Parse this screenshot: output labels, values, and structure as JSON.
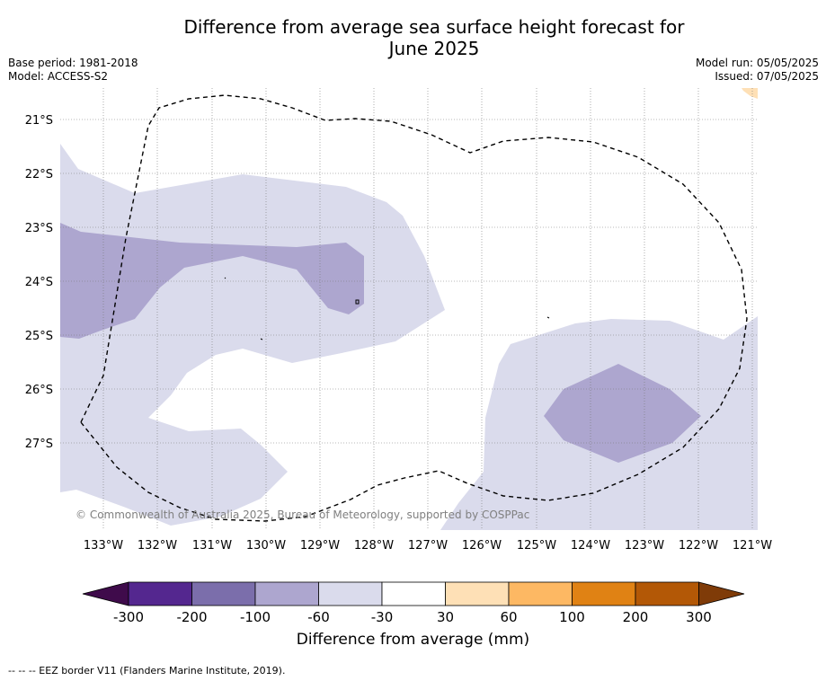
{
  "title": {
    "line1": "Difference from average sea surface height forecast for",
    "line2": "June 2025"
  },
  "meta": {
    "base_period": "Base period: 1981-2018",
    "model": "Model: ACCESS-S2",
    "model_run": "Model run: 05/05/2025",
    "issued": "Issued: 07/05/2025"
  },
  "map": {
    "lat_labels": [
      "21°S",
      "22°S",
      "23°S",
      "24°S",
      "25°S",
      "26°S",
      "27°S"
    ],
    "lon_labels": [
      "133°W",
      "132°W",
      "131°W",
      "130°W",
      "129°W",
      "128°W",
      "127°W",
      "126°W",
      "125°W",
      "124°W",
      "123°W",
      "122°W",
      "121°W"
    ],
    "copyright": "© Commonwealth of Australia 2025, Bureau of Meteorology, supported by COSPPac",
    "eez_border": "dashed"
  },
  "colorbar": {
    "tick_labels": [
      "-300",
      "-200",
      "-100",
      "-60",
      "-30",
      "30",
      "60",
      "100",
      "200",
      "300"
    ],
    "colors": [
      "#3f0b4b",
      "#54278f",
      "#7b6eab",
      "#ada6cf",
      "#dadbec",
      "#ffffff",
      "#fee0b6",
      "#fdb863",
      "#e08214",
      "#b35806",
      "#7f3b08"
    ],
    "label": "Difference from average (mm)"
  },
  "footnote": "--  --  -- EEZ border V11 (Flanders Marine Institute, 2019)."
}
